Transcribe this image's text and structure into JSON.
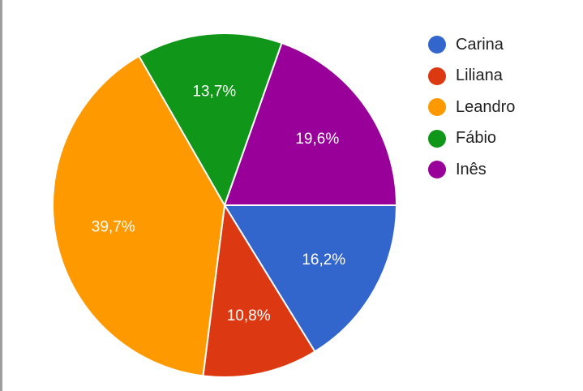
{
  "chart_data": {
    "type": "pie",
    "slices": [
      {
        "name": "Carina",
        "value": 16.2,
        "label": "16,2%",
        "color": "#3366cc"
      },
      {
        "name": "Liliana",
        "value": 10.8,
        "label": "10,8%",
        "color": "#dc3912"
      },
      {
        "name": "Leandro",
        "value": 39.7,
        "label": "39,7%",
        "color": "#ff9900"
      },
      {
        "name": "Fábio",
        "value": 13.7,
        "label": "13,7%",
        "color": "#109618"
      },
      {
        "name": "Inês",
        "value": 19.6,
        "label": "19,6%",
        "color": "#990099"
      }
    ],
    "legend_position": "right",
    "start_direction": "east",
    "direction": "clockwise"
  }
}
